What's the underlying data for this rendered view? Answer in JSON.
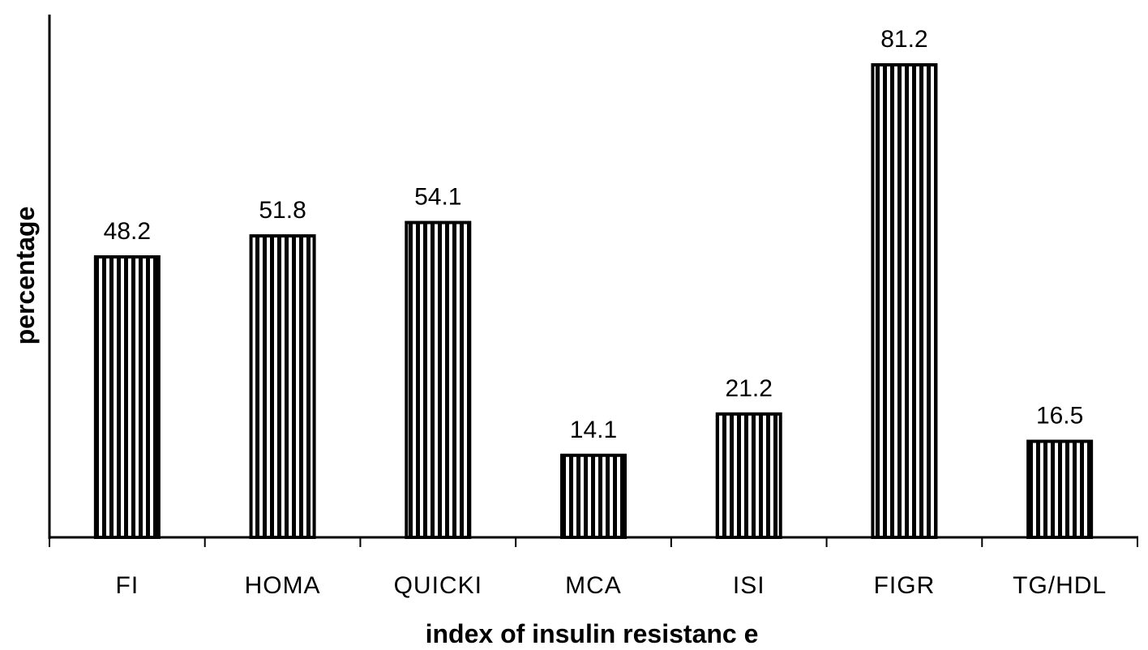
{
  "chart_data": {
    "type": "bar",
    "categories": [
      "FI",
      "HOMA",
      "QUICKI",
      "MCA",
      "ISI",
      "FIGR",
      "TG/HDL"
    ],
    "values": [
      48.2,
      51.8,
      54.1,
      14.1,
      21.2,
      81.2,
      16.5
    ],
    "data_labels": [
      "48.2",
      "51.8",
      "54.1",
      "14.1",
      "21.2",
      "81.2",
      "16.5"
    ],
    "title": "",
    "xlabel": "index of insulin resistanc e",
    "ylabel": "percentage",
    "ylim": [
      0,
      90
    ],
    "grid": false,
    "legend": "none",
    "bar_fill": "vertical black stripes",
    "colors": {
      "bar": "#000000",
      "background": "#ffffff"
    }
  }
}
